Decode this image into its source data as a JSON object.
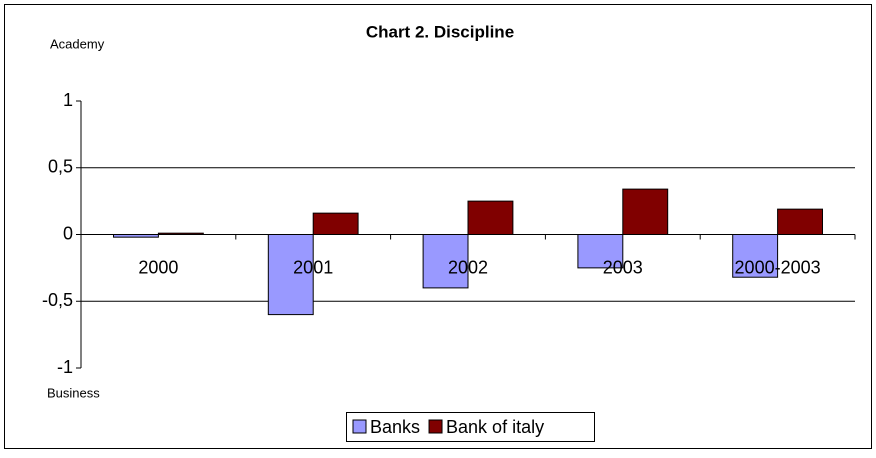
{
  "chart_data": {
    "type": "bar",
    "title": "Chart 2. Discipline",
    "annotations": [
      "Academy",
      "Business"
    ],
    "categories": [
      "2000",
      "2001",
      "2002",
      "2003",
      "2000-2003"
    ],
    "series": [
      {
        "name": "Banks",
        "color": "#9999ff",
        "values": [
          -0.02,
          -0.6,
          -0.4,
          -0.25,
          -0.32
        ]
      },
      {
        "name": "Bank of italy",
        "color": "#800000",
        "values": [
          0.01,
          0.16,
          0.25,
          0.34,
          0.19
        ]
      }
    ],
    "ylim": [
      -1,
      1
    ],
    "yticks": [
      -1,
      {
        "value": -0.5,
        "label": "-0,5"
      },
      0,
      {
        "value": 0.5,
        "label": "0,5"
      },
      1
    ],
    "grid": true,
    "legend": "bottom"
  }
}
